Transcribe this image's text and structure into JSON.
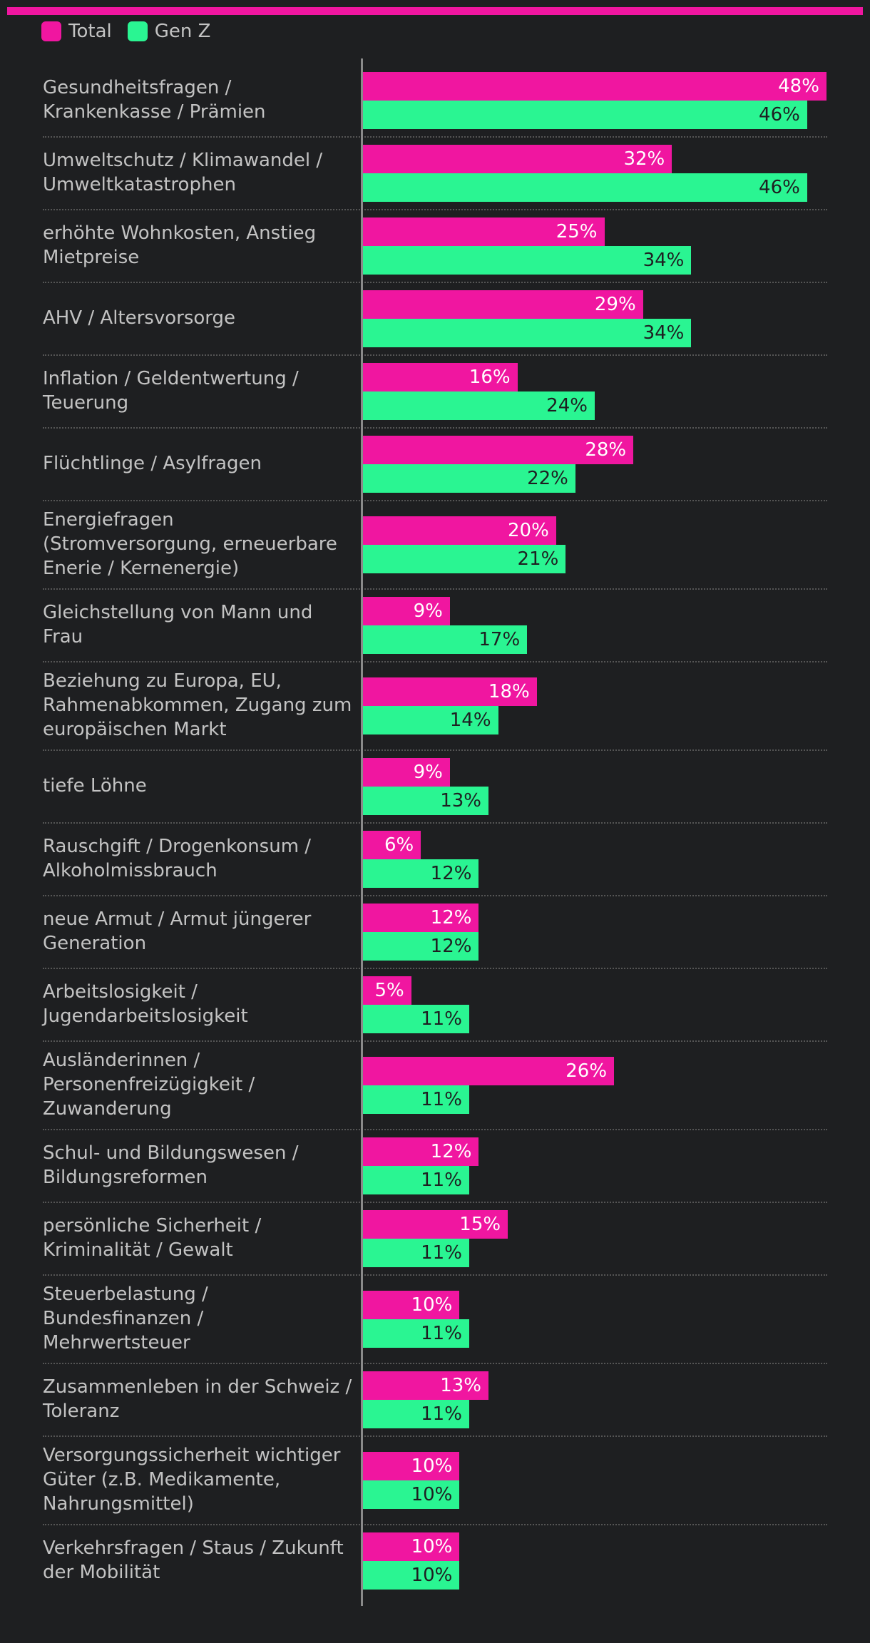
{
  "colors": {
    "total": "#f016a0",
    "genz": "#2af592",
    "total_text": "#ffffff",
    "genz_text": "#1e1f21"
  },
  "legend": [
    {
      "name": "Total",
      "color": "#f016a0"
    },
    {
      "name": "Gen Z",
      "color": "#2af592"
    }
  ],
  "chart_data": {
    "type": "bar",
    "orientation": "horizontal",
    "xlim": [
      0,
      48
    ],
    "grid": false,
    "legend_position": "top-left",
    "categories": [
      [
        "Gesundheitsfragen /",
        "Krankenkasse / Prämien"
      ],
      [
        "Umweltschutz / Klimawandel /",
        "Umweltkatastrophen"
      ],
      [
        "erhöhte Wohnkosten, Anstieg",
        "Mietpreise"
      ],
      [
        "AHV / Altersvorsorge"
      ],
      [
        "Inflation / Geldentwertung /",
        "Teuerung"
      ],
      [
        "Flüchtlinge / Asylfragen"
      ],
      [
        "Energiefragen",
        "(Stromversorgung, erneuerbare",
        "Enerie / Kernenergie)"
      ],
      [
        "Gleichstellung von Mann und",
        "Frau"
      ],
      [
        "Beziehung zu Europa, EU,",
        "Rahmenabkommen, Zugang zum",
        "europäischen Markt"
      ],
      [
        "tiefe Löhne"
      ],
      [
        "Rauschgift / Drogenkonsum /",
        "Alkoholmissbrauch"
      ],
      [
        "neue Armut / Armut jüngerer",
        "Generation"
      ],
      [
        "Arbeitslosigkeit /",
        "Jugendarbeitslosigkeit"
      ],
      [
        "Ausländerinnen /",
        "Personenfreizügigkeit /",
        "Zuwanderung"
      ],
      [
        "Schul- und Bildungswesen /",
        "Bildungsreformen"
      ],
      [
        "persönliche Sicherheit /",
        "Kriminalität / Gewalt"
      ],
      [
        "Steuerbelastung /",
        "Bundesfinanzen /",
        "Mehrwertsteuer"
      ],
      [
        "Zusammenleben in der Schweiz /",
        "Toleranz"
      ],
      [
        "Versorgungssicherheit wichtiger",
        "Güter (z.B. Medikamente,",
        "Nahrungsmittel)"
      ],
      [
        "Verkehrsfragen / Staus / Zukunft",
        "der Mobilität"
      ]
    ],
    "series": [
      {
        "name": "Total",
        "values": [
          48,
          32,
          25,
          29,
          16,
          28,
          20,
          9,
          18,
          9,
          6,
          12,
          5,
          26,
          12,
          15,
          10,
          13,
          10,
          10
        ]
      },
      {
        "name": "Gen Z",
        "values": [
          46,
          46,
          34,
          34,
          24,
          22,
          21,
          17,
          14,
          13,
          12,
          12,
          11,
          11,
          11,
          11,
          11,
          11,
          10,
          10
        ]
      }
    ],
    "value_suffix": "%"
  }
}
